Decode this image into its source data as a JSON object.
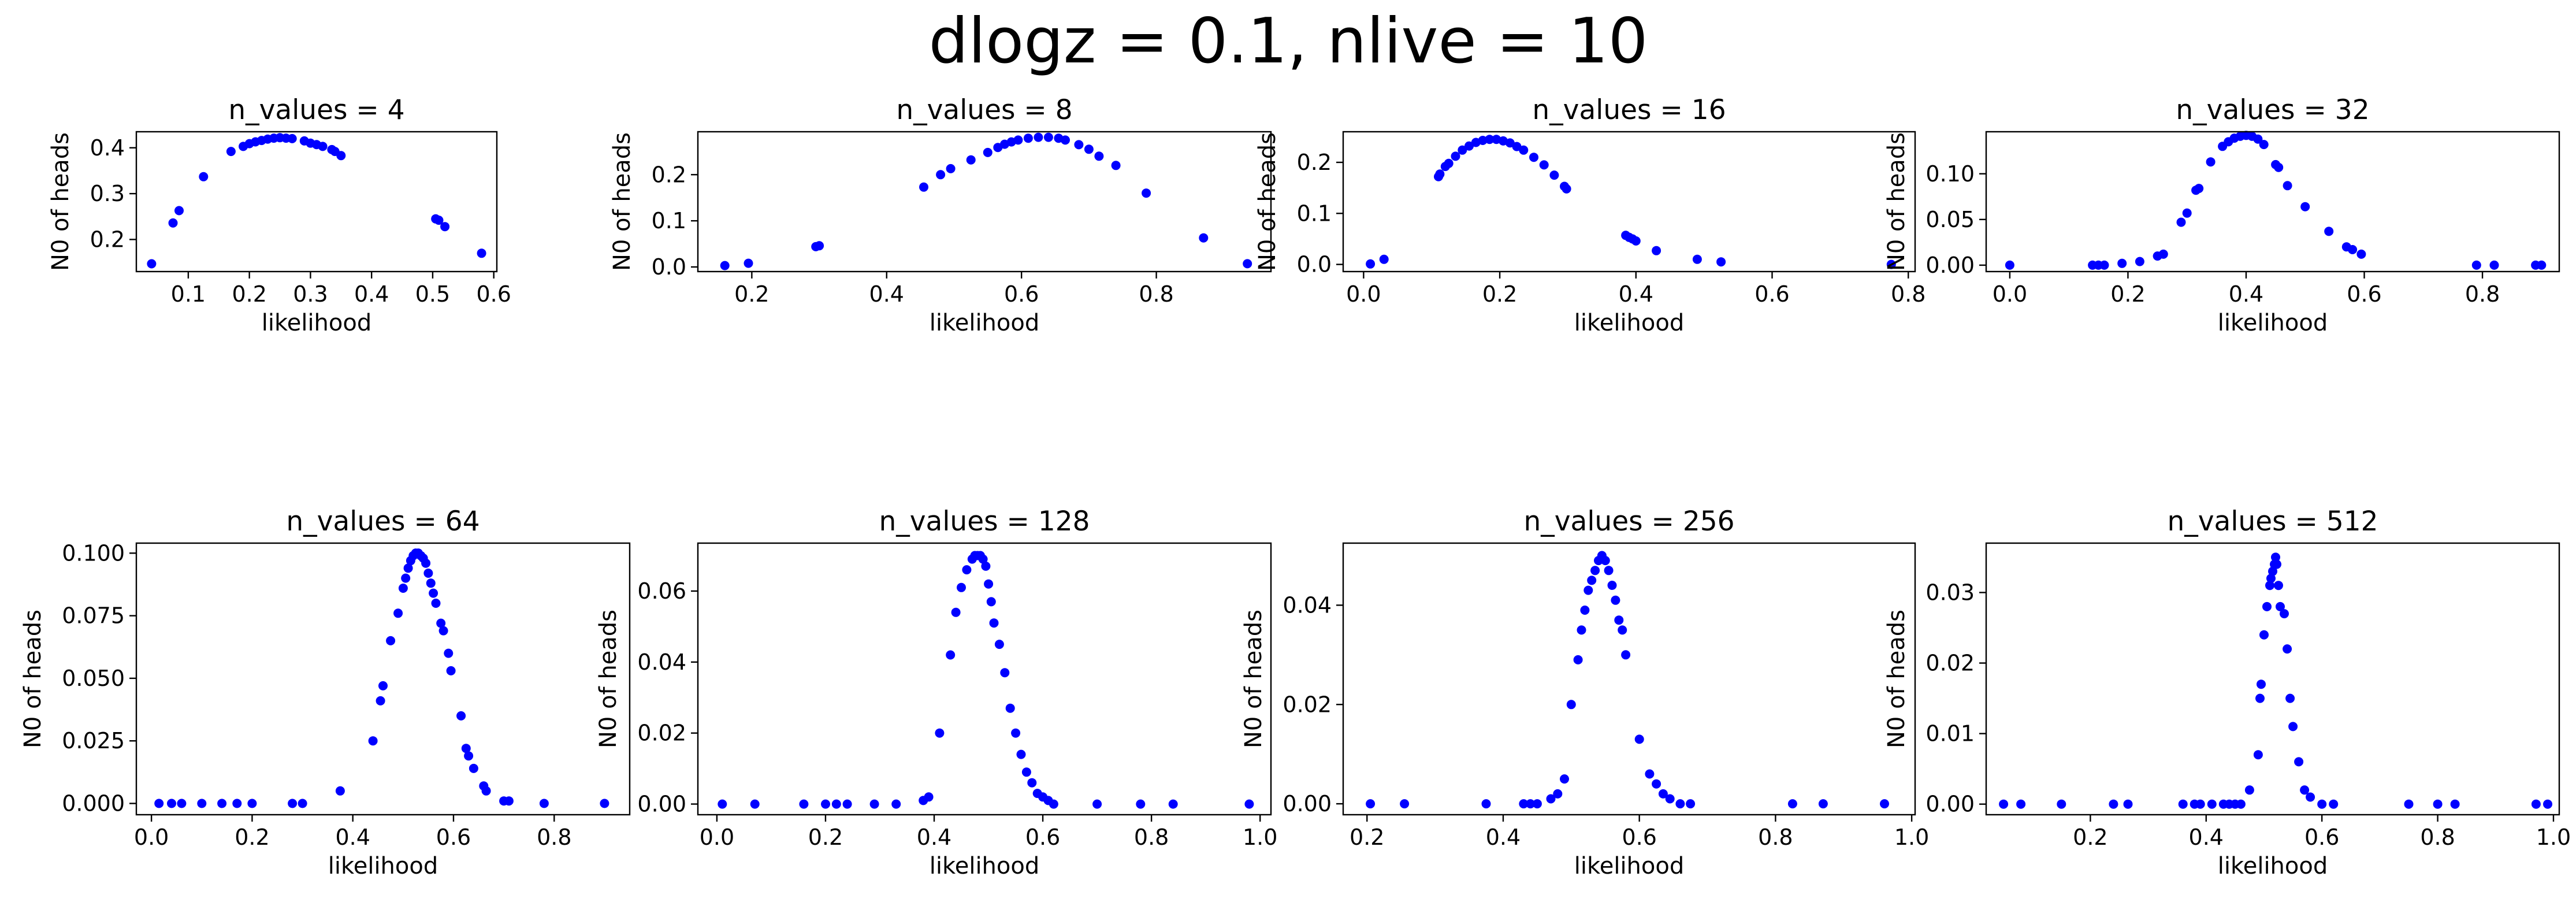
{
  "figure": {
    "title": "dlogz = 0.1, nlive = 10",
    "marker_color": "#0000ff"
  },
  "chart_data": [
    {
      "type": "scatter",
      "title": "n_values =  4",
      "xlabel": "likelihood",
      "ylabel": "N0 of heads",
      "xlim": [
        0.015,
        0.605
      ],
      "ylim": [
        0.13,
        0.435
      ],
      "xticks": [
        0.1,
        0.2,
        0.3,
        0.4,
        0.5,
        0.6
      ],
      "xtick_labels": [
        "0.1",
        "0.2",
        "0.3",
        "0.4",
        "0.5",
        "0.6"
      ],
      "yticks": [
        0.2,
        0.3,
        0.4
      ],
      "ytick_labels": [
        "0.2",
        "0.3",
        "0.4"
      ],
      "points": [
        [
          0.04,
          0.147
        ],
        [
          0.075,
          0.236
        ],
        [
          0.085,
          0.263
        ],
        [
          0.125,
          0.337
        ],
        [
          0.17,
          0.392
        ],
        [
          0.19,
          0.403
        ],
        [
          0.2,
          0.409
        ],
        [
          0.21,
          0.413
        ],
        [
          0.22,
          0.416
        ],
        [
          0.23,
          0.419
        ],
        [
          0.24,
          0.421
        ],
        [
          0.25,
          0.422
        ],
        [
          0.26,
          0.421
        ],
        [
          0.27,
          0.42
        ],
        [
          0.29,
          0.415
        ],
        [
          0.3,
          0.41
        ],
        [
          0.31,
          0.407
        ],
        [
          0.32,
          0.403
        ],
        [
          0.335,
          0.396
        ],
        [
          0.34,
          0.392
        ],
        [
          0.35,
          0.383
        ],
        [
          0.505,
          0.245
        ],
        [
          0.51,
          0.242
        ],
        [
          0.52,
          0.228
        ],
        [
          0.58,
          0.17
        ]
      ]
    },
    {
      "type": "scatter",
      "title": "n_values =  8",
      "xlabel": "likelihood",
      "ylabel": "N0 of heads",
      "xlim": [
        0.12,
        0.97
      ],
      "ylim": [
        -0.01,
        0.293
      ],
      "xticks": [
        0.2,
        0.4,
        0.6,
        0.8
      ],
      "xtick_labels": [
        "0.2",
        "0.4",
        "0.6",
        "0.8"
      ],
      "yticks": [
        0.0,
        0.1,
        0.2
      ],
      "ytick_labels": [
        "0.0",
        "0.1",
        "0.2"
      ],
      "points": [
        [
          0.16,
          0.003
        ],
        [
          0.195,
          0.008
        ],
        [
          0.295,
          0.044
        ],
        [
          0.3,
          0.046
        ],
        [
          0.455,
          0.173
        ],
        [
          0.48,
          0.2
        ],
        [
          0.495,
          0.213
        ],
        [
          0.525,
          0.232
        ],
        [
          0.55,
          0.248
        ],
        [
          0.565,
          0.259
        ],
        [
          0.575,
          0.266
        ],
        [
          0.585,
          0.271
        ],
        [
          0.595,
          0.275
        ],
        [
          0.61,
          0.279
        ],
        [
          0.625,
          0.281
        ],
        [
          0.64,
          0.281
        ],
        [
          0.655,
          0.279
        ],
        [
          0.665,
          0.275
        ],
        [
          0.685,
          0.265
        ],
        [
          0.7,
          0.255
        ],
        [
          0.715,
          0.24
        ],
        [
          0.74,
          0.22
        ],
        [
          0.785,
          0.16
        ],
        [
          0.87,
          0.063
        ],
        [
          0.935,
          0.007
        ]
      ]
    },
    {
      "type": "scatter",
      "title": "n_values =  16",
      "xlabel": "likelihood",
      "ylabel": "N0 of heads",
      "xlim": [
        -0.03,
        0.81
      ],
      "ylim": [
        -0.014,
        0.26
      ],
      "xticks": [
        0.0,
        0.2,
        0.4,
        0.6,
        0.8
      ],
      "xtick_labels": [
        "0.0",
        "0.2",
        "0.4",
        "0.6",
        "0.8"
      ],
      "yticks": [
        0.0,
        0.1,
        0.2
      ],
      "ytick_labels": [
        "0.0",
        "0.1",
        "0.2"
      ],
      "points": [
        [
          0.01,
          0.001
        ],
        [
          0.03,
          0.01
        ],
        [
          0.11,
          0.172
        ],
        [
          0.112,
          0.177
        ],
        [
          0.12,
          0.192
        ],
        [
          0.125,
          0.198
        ],
        [
          0.135,
          0.212
        ],
        [
          0.145,
          0.224
        ],
        [
          0.155,
          0.232
        ],
        [
          0.165,
          0.239
        ],
        [
          0.175,
          0.243
        ],
        [
          0.185,
          0.245
        ],
        [
          0.195,
          0.245
        ],
        [
          0.205,
          0.242
        ],
        [
          0.215,
          0.238
        ],
        [
          0.225,
          0.231
        ],
        [
          0.235,
          0.224
        ],
        [
          0.25,
          0.21
        ],
        [
          0.265,
          0.195
        ],
        [
          0.28,
          0.175
        ],
        [
          0.295,
          0.153
        ],
        [
          0.298,
          0.148
        ],
        [
          0.385,
          0.057
        ],
        [
          0.39,
          0.053
        ],
        [
          0.395,
          0.05
        ],
        [
          0.4,
          0.046
        ],
        [
          0.43,
          0.027
        ],
        [
          0.49,
          0.01
        ],
        [
          0.525,
          0.005
        ],
        [
          0.775,
          0.0
        ]
      ]
    },
    {
      "type": "scatter",
      "title": "n_values =  32",
      "xlabel": "likelihood",
      "ylabel": "N0 of heads",
      "xlim": [
        -0.04,
        0.93
      ],
      "ylim": [
        -0.007,
        0.146
      ],
      "xticks": [
        0.0,
        0.2,
        0.4,
        0.6,
        0.8
      ],
      "xtick_labels": [
        "0.0",
        "0.2",
        "0.4",
        "0.6",
        "0.8"
      ],
      "yticks": [
        0.0,
        0.05,
        0.1
      ],
      "ytick_labels": [
        "0.00",
        "0.05",
        "0.10"
      ],
      "points": [
        [
          0.0,
          0.0
        ],
        [
          0.14,
          0.0
        ],
        [
          0.15,
          0.0
        ],
        [
          0.16,
          0.0
        ],
        [
          0.19,
          0.002
        ],
        [
          0.22,
          0.004
        ],
        [
          0.25,
          0.01
        ],
        [
          0.26,
          0.012
        ],
        [
          0.29,
          0.047
        ],
        [
          0.3,
          0.057
        ],
        [
          0.315,
          0.082
        ],
        [
          0.32,
          0.084
        ],
        [
          0.34,
          0.113
        ],
        [
          0.36,
          0.13
        ],
        [
          0.37,
          0.135
        ],
        [
          0.38,
          0.139
        ],
        [
          0.39,
          0.141
        ],
        [
          0.4,
          0.142
        ],
        [
          0.41,
          0.141
        ],
        [
          0.42,
          0.138
        ],
        [
          0.43,
          0.132
        ],
        [
          0.45,
          0.11
        ],
        [
          0.455,
          0.107
        ],
        [
          0.47,
          0.087
        ],
        [
          0.5,
          0.064
        ],
        [
          0.54,
          0.037
        ],
        [
          0.57,
          0.02
        ],
        [
          0.58,
          0.017
        ],
        [
          0.595,
          0.012
        ],
        [
          0.79,
          0.0
        ],
        [
          0.82,
          0.0
        ],
        [
          0.89,
          0.0
        ],
        [
          0.9,
          0.0
        ]
      ]
    },
    {
      "type": "scatter",
      "title": "n_values =  64",
      "xlabel": "likelihood",
      "ylabel": "N0 of heads",
      "xlim": [
        -0.03,
        0.95
      ],
      "ylim": [
        -0.0045,
        0.104
      ],
      "xticks": [
        0.0,
        0.2,
        0.4,
        0.6,
        0.8
      ],
      "xtick_labels": [
        "0.0",
        "0.2",
        "0.4",
        "0.6",
        "0.8"
      ],
      "yticks": [
        0.0,
        0.025,
        0.05,
        0.075,
        0.1
      ],
      "ytick_labels": [
        "0.000",
        "0.025",
        "0.050",
        "0.075",
        "0.100"
      ],
      "points": [
        [
          0.015,
          0.0
        ],
        [
          0.04,
          0.0
        ],
        [
          0.06,
          0.0
        ],
        [
          0.1,
          0.0
        ],
        [
          0.14,
          0.0
        ],
        [
          0.17,
          0.0
        ],
        [
          0.2,
          0.0
        ],
        [
          0.28,
          0.0
        ],
        [
          0.3,
          0.0
        ],
        [
          0.375,
          0.005
        ],
        [
          0.44,
          0.025
        ],
        [
          0.455,
          0.041
        ],
        [
          0.46,
          0.047
        ],
        [
          0.475,
          0.065
        ],
        [
          0.49,
          0.076
        ],
        [
          0.5,
          0.086
        ],
        [
          0.505,
          0.09
        ],
        [
          0.51,
          0.094
        ],
        [
          0.515,
          0.097
        ],
        [
          0.52,
          0.099
        ],
        [
          0.525,
          0.1
        ],
        [
          0.53,
          0.1
        ],
        [
          0.535,
          0.099
        ],
        [
          0.54,
          0.098
        ],
        [
          0.545,
          0.096
        ],
        [
          0.55,
          0.092
        ],
        [
          0.555,
          0.088
        ],
        [
          0.56,
          0.084
        ],
        [
          0.565,
          0.08
        ],
        [
          0.575,
          0.072
        ],
        [
          0.58,
          0.069
        ],
        [
          0.59,
          0.06
        ],
        [
          0.595,
          0.053
        ],
        [
          0.615,
          0.035
        ],
        [
          0.625,
          0.022
        ],
        [
          0.63,
          0.019
        ],
        [
          0.64,
          0.014
        ],
        [
          0.66,
          0.007
        ],
        [
          0.665,
          0.005
        ],
        [
          0.7,
          0.001
        ],
        [
          0.71,
          0.001
        ],
        [
          0.78,
          0.0
        ],
        [
          0.9,
          0.0
        ]
      ]
    },
    {
      "type": "scatter",
      "title": "n_values =  128",
      "xlabel": "likelihood",
      "ylabel": "N0 of heads",
      "xlim": [
        -0.035,
        1.02
      ],
      "ylim": [
        -0.003,
        0.0735
      ],
      "xticks": [
        0.0,
        0.2,
        0.4,
        0.6,
        0.8,
        1.0
      ],
      "xtick_labels": [
        "0.0",
        "0.2",
        "0.4",
        "0.6",
        "0.8",
        "1.0"
      ],
      "yticks": [
        0.0,
        0.02,
        0.04,
        0.06
      ],
      "ytick_labels": [
        "0.00",
        "0.02",
        "0.04",
        "0.06"
      ],
      "points": [
        [
          0.01,
          0.0
        ],
        [
          0.07,
          0.0
        ],
        [
          0.16,
          0.0
        ],
        [
          0.2,
          0.0
        ],
        [
          0.22,
          0.0
        ],
        [
          0.24,
          0.0
        ],
        [
          0.29,
          0.0
        ],
        [
          0.33,
          0.0
        ],
        [
          0.38,
          0.001
        ],
        [
          0.39,
          0.002
        ],
        [
          0.41,
          0.02
        ],
        [
          0.43,
          0.042
        ],
        [
          0.44,
          0.054
        ],
        [
          0.45,
          0.061
        ],
        [
          0.46,
          0.066
        ],
        [
          0.47,
          0.069
        ],
        [
          0.475,
          0.07
        ],
        [
          0.48,
          0.07
        ],
        [
          0.485,
          0.07
        ],
        [
          0.49,
          0.069
        ],
        [
          0.495,
          0.067
        ],
        [
          0.5,
          0.062
        ],
        [
          0.505,
          0.057
        ],
        [
          0.51,
          0.051
        ],
        [
          0.52,
          0.045
        ],
        [
          0.53,
          0.037
        ],
        [
          0.54,
          0.027
        ],
        [
          0.55,
          0.02
        ],
        [
          0.56,
          0.014
        ],
        [
          0.57,
          0.009
        ],
        [
          0.58,
          0.006
        ],
        [
          0.59,
          0.003
        ],
        [
          0.6,
          0.002
        ],
        [
          0.61,
          0.001
        ],
        [
          0.62,
          0.0
        ],
        [
          0.7,
          0.0
        ],
        [
          0.78,
          0.0
        ],
        [
          0.84,
          0.0
        ],
        [
          0.98,
          0.0
        ]
      ]
    },
    {
      "type": "scatter",
      "title": "n_values =  256",
      "xlabel": "likelihood",
      "ylabel": "N0 of heads",
      "xlim": [
        0.165,
        1.005
      ],
      "ylim": [
        -0.0022,
        0.0525
      ],
      "xticks": [
        0.2,
        0.4,
        0.6,
        0.8,
        1.0
      ],
      "xtick_labels": [
        "0.2",
        "0.4",
        "0.6",
        "0.8",
        "1.0"
      ],
      "yticks": [
        0.0,
        0.02,
        0.04
      ],
      "ytick_labels": [
        "0.00",
        "0.02",
        "0.04"
      ],
      "points": [
        [
          0.205,
          0.0
        ],
        [
          0.255,
          0.0
        ],
        [
          0.375,
          0.0
        ],
        [
          0.43,
          0.0
        ],
        [
          0.44,
          0.0
        ],
        [
          0.45,
          0.0
        ],
        [
          0.47,
          0.001
        ],
        [
          0.48,
          0.002
        ],
        [
          0.49,
          0.005
        ],
        [
          0.5,
          0.02
        ],
        [
          0.51,
          0.029
        ],
        [
          0.515,
          0.035
        ],
        [
          0.52,
          0.039
        ],
        [
          0.525,
          0.043
        ],
        [
          0.53,
          0.045
        ],
        [
          0.535,
          0.047
        ],
        [
          0.54,
          0.049
        ],
        [
          0.545,
          0.05
        ],
        [
          0.55,
          0.049
        ],
        [
          0.555,
          0.047
        ],
        [
          0.56,
          0.044
        ],
        [
          0.565,
          0.041
        ],
        [
          0.57,
          0.037
        ],
        [
          0.575,
          0.035
        ],
        [
          0.58,
          0.03
        ],
        [
          0.6,
          0.013
        ],
        [
          0.615,
          0.006
        ],
        [
          0.625,
          0.004
        ],
        [
          0.635,
          0.002
        ],
        [
          0.645,
          0.001
        ],
        [
          0.66,
          0.0
        ],
        [
          0.675,
          0.0
        ],
        [
          0.825,
          0.0
        ],
        [
          0.87,
          0.0
        ],
        [
          0.96,
          0.0
        ]
      ]
    },
    {
      "type": "scatter",
      "title": "n_values =  512",
      "xlabel": "likelihood",
      "ylabel": "N0 of heads",
      "xlim": [
        0.02,
        1.01
      ],
      "ylim": [
        -0.0015,
        0.037
      ],
      "xticks": [
        0.2,
        0.4,
        0.6,
        0.8,
        1.0
      ],
      "xtick_labels": [
        "0.2",
        "0.4",
        "0.6",
        "0.8",
        "1.0"
      ],
      "yticks": [
        0.0,
        0.01,
        0.02,
        0.03
      ],
      "ytick_labels": [
        "0.00",
        "0.01",
        "0.02",
        "0.03"
      ],
      "points": [
        [
          0.05,
          0.0
        ],
        [
          0.08,
          0.0
        ],
        [
          0.15,
          0.0
        ],
        [
          0.24,
          0.0
        ],
        [
          0.265,
          0.0
        ],
        [
          0.36,
          0.0
        ],
        [
          0.38,
          0.0
        ],
        [
          0.39,
          0.0
        ],
        [
          0.41,
          0.0
        ],
        [
          0.43,
          0.0
        ],
        [
          0.44,
          0.0
        ],
        [
          0.45,
          0.0
        ],
        [
          0.46,
          0.0
        ],
        [
          0.475,
          0.002
        ],
        [
          0.49,
          0.007
        ],
        [
          0.493,
          0.015
        ],
        [
          0.495,
          0.017
        ],
        [
          0.5,
          0.024
        ],
        [
          0.505,
          0.028
        ],
        [
          0.51,
          0.031
        ],
        [
          0.512,
          0.032
        ],
        [
          0.515,
          0.033
        ],
        [
          0.518,
          0.034
        ],
        [
          0.52,
          0.035
        ],
        [
          0.522,
          0.034
        ],
        [
          0.525,
          0.031
        ],
        [
          0.528,
          0.028
        ],
        [
          0.535,
          0.027
        ],
        [
          0.54,
          0.022
        ],
        [
          0.545,
          0.015
        ],
        [
          0.55,
          0.011
        ],
        [
          0.56,
          0.006
        ],
        [
          0.57,
          0.002
        ],
        [
          0.58,
          0.001
        ],
        [
          0.6,
          0.0
        ],
        [
          0.62,
          0.0
        ],
        [
          0.75,
          0.0
        ],
        [
          0.8,
          0.0
        ],
        [
          0.83,
          0.0
        ],
        [
          0.97,
          0.0
        ],
        [
          0.99,
          0.0
        ]
      ]
    }
  ]
}
